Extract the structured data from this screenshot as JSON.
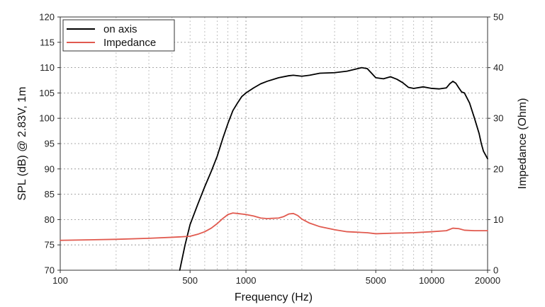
{
  "chart_data": {
    "type": "line",
    "xscale": "log",
    "xlim": [
      100,
      20000
    ],
    "ylim": [
      70,
      120
    ],
    "y2lim": [
      0,
      50
    ],
    "xlabel": "Frequency (Hz)",
    "ylabel": "SPL (dB) @ 2.83V, 1m",
    "y2label": "Impedance (Ohm)",
    "xticks": [
      100,
      500,
      1000,
      5000,
      10000,
      20000
    ],
    "xtick_labels": [
      "100",
      "500",
      "1000",
      "5000",
      "10000",
      "20000"
    ],
    "yticks": [
      70,
      75,
      80,
      85,
      90,
      95,
      100,
      105,
      110,
      115,
      120
    ],
    "yticks2": [
      0,
      10,
      20,
      30,
      40,
      50
    ],
    "grid": true,
    "legend_position": "top-left",
    "series": [
      {
        "name": "on axis",
        "color": "#000000",
        "axis": "left",
        "points": [
          [
            440,
            70
          ],
          [
            470,
            75
          ],
          [
            500,
            79
          ],
          [
            550,
            83
          ],
          [
            600,
            86.5
          ],
          [
            650,
            89.5
          ],
          [
            700,
            92.5
          ],
          [
            750,
            96
          ],
          [
            800,
            99
          ],
          [
            850,
            101.5
          ],
          [
            900,
            103
          ],
          [
            950,
            104.3
          ],
          [
            1000,
            105
          ],
          [
            1100,
            106
          ],
          [
            1200,
            106.8
          ],
          [
            1300,
            107.3
          ],
          [
            1500,
            108
          ],
          [
            1700,
            108.4
          ],
          [
            1800,
            108.5
          ],
          [
            2000,
            108.3
          ],
          [
            2200,
            108.5
          ],
          [
            2500,
            108.9
          ],
          [
            3000,
            109
          ],
          [
            3500,
            109.3
          ],
          [
            4000,
            109.8
          ],
          [
            4200,
            110
          ],
          [
            4500,
            109.8
          ],
          [
            5000,
            108
          ],
          [
            5500,
            107.8
          ],
          [
            6000,
            108.2
          ],
          [
            6500,
            107.7
          ],
          [
            7000,
            107
          ],
          [
            7500,
            106.1
          ],
          [
            8000,
            105.9
          ],
          [
            9000,
            106.2
          ],
          [
            10000,
            105.9
          ],
          [
            11000,
            105.8
          ],
          [
            12000,
            106
          ],
          [
            12500,
            106.8
          ],
          [
            13000,
            107.3
          ],
          [
            13500,
            106.9
          ],
          [
            14000,
            106
          ],
          [
            14500,
            105.2
          ],
          [
            15000,
            105
          ],
          [
            16000,
            103
          ],
          [
            17000,
            100
          ],
          [
            18000,
            97
          ],
          [
            18500,
            95
          ],
          [
            19000,
            93.5
          ],
          [
            20000,
            92
          ]
        ]
      },
      {
        "name": "Impedance",
        "color": "#e15a4f",
        "axis": "right",
        "points": [
          [
            100,
            5.9
          ],
          [
            200,
            6.1
          ],
          [
            300,
            6.3
          ],
          [
            400,
            6.5
          ],
          [
            450,
            6.6
          ],
          [
            500,
            6.7
          ],
          [
            550,
            7.1
          ],
          [
            600,
            7.6
          ],
          [
            650,
            8.3
          ],
          [
            700,
            9.2
          ],
          [
            750,
            10.2
          ],
          [
            800,
            11
          ],
          [
            850,
            11.3
          ],
          [
            900,
            11.2
          ],
          [
            1000,
            11
          ],
          [
            1100,
            10.7
          ],
          [
            1200,
            10.3
          ],
          [
            1300,
            10.2
          ],
          [
            1500,
            10.3
          ],
          [
            1600,
            10.6
          ],
          [
            1700,
            11.1
          ],
          [
            1800,
            11.2
          ],
          [
            1900,
            10.8
          ],
          [
            2000,
            10.1
          ],
          [
            2200,
            9.3
          ],
          [
            2500,
            8.6
          ],
          [
            3000,
            8
          ],
          [
            3500,
            7.6
          ],
          [
            4000,
            7.5
          ],
          [
            4500,
            7.4
          ],
          [
            5000,
            7.2
          ],
          [
            6000,
            7.3
          ],
          [
            8000,
            7.4
          ],
          [
            10000,
            7.6
          ],
          [
            12000,
            7.8
          ],
          [
            13000,
            8.3
          ],
          [
            14000,
            8.2
          ],
          [
            15000,
            7.9
          ],
          [
            17000,
            7.8
          ],
          [
            20000,
            7.8
          ]
        ]
      }
    ]
  }
}
